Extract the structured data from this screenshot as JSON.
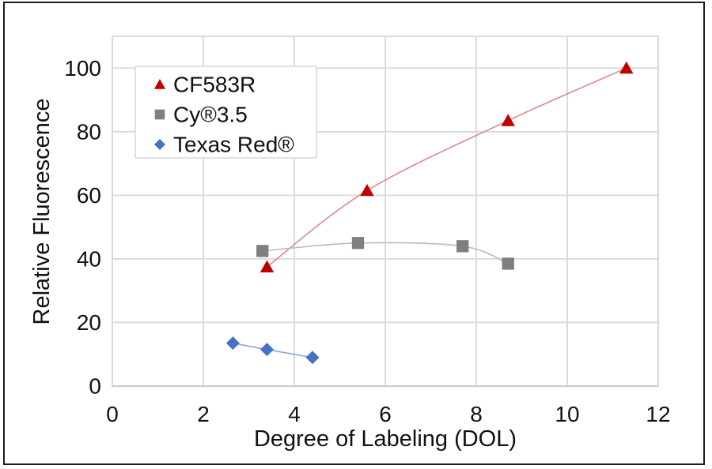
{
  "chart_data": {
    "type": "scatter",
    "title": "",
    "xlabel": "Degree of Labeling (DOL)",
    "ylabel": "Relative Fluorescence",
    "xlim": [
      0,
      12
    ],
    "ylim": [
      0,
      110
    ],
    "xticks": [
      0,
      2,
      4,
      6,
      8,
      10,
      12
    ],
    "yticks": [
      0,
      20,
      40,
      60,
      80,
      100
    ],
    "grid": true,
    "gridline_color": "#d9d9d9",
    "axis_line_color": "#c9c9c9",
    "text_color": "#111111",
    "legend_position": "top-left-inside",
    "series": [
      {
        "name": "CF583R",
        "marker": "triangle",
        "marker_icon": "triangle-marker-icon",
        "marker_color": "#c00000",
        "line_color": "#dc8e96",
        "points": [
          [
            3.4,
            37.5
          ],
          [
            5.6,
            61.5
          ],
          [
            8.7,
            83.5
          ],
          [
            11.3,
            100
          ]
        ]
      },
      {
        "name": "Cy®3.5",
        "marker": "square",
        "marker_icon": "square-marker-icon",
        "marker_color": "#7f7f7f",
        "line_color": "#bfbfbf",
        "points": [
          [
            3.3,
            42.5
          ],
          [
            5.4,
            45
          ],
          [
            7.7,
            44
          ],
          [
            8.7,
            38.5
          ]
        ]
      },
      {
        "name": "Texas Red®",
        "marker": "diamond",
        "marker_icon": "diamond-marker-icon",
        "marker_color": "#4472c4",
        "line_color": "#8faadc",
        "points": [
          [
            2.65,
            13.5
          ],
          [
            3.4,
            11.5
          ],
          [
            4.4,
            9
          ]
        ]
      }
    ]
  }
}
